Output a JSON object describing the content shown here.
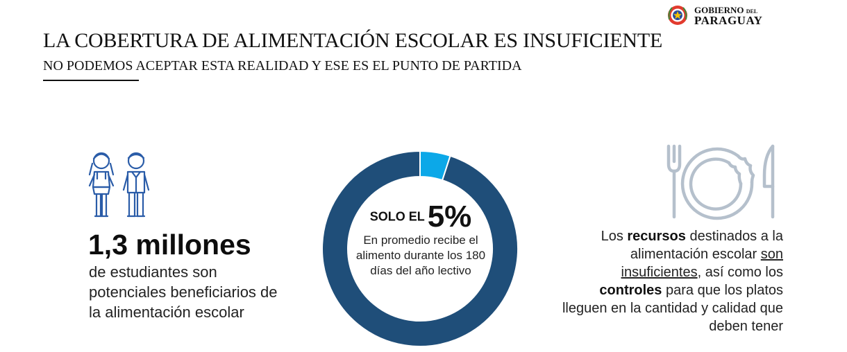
{
  "header": {
    "logo": {
      "line1": "GOBIERNO",
      "line1_small": "DEL",
      "line2": "PARAGUAY"
    },
    "title": "LA COBERTURA DE ALIMENTACIÓN ESCOLAR ES INSUFICIENTE",
    "subtitle": "NO PODEMOS ACEPTAR ESTA REALIDAD Y ESE ES EL PUNTO DE PARTIDA"
  },
  "left_block": {
    "icon": "students-icon",
    "headline": "1,3 millones",
    "description": "de estudiantes son potenciales beneficiarios de la alimentación escolar"
  },
  "chart_data": {
    "type": "pie",
    "variant": "donut",
    "slices": [
      {
        "label": "",
        "value": 5,
        "color": "#0ca8e8"
      },
      {
        "label": "",
        "value": 95,
        "color": "#1f4e79"
      }
    ],
    "center_lead": "SOLO EL",
    "center_value": "5%",
    "center_text": "En promedio recibe el alimento durante los 180 días del año lectivo"
  },
  "right_block": {
    "icon": "cutlery-plate-icon",
    "t1": "Los ",
    "b1": "recursos",
    "t2": " destinados a la alimentación escolar ",
    "u1": "son insuficientes",
    "t3": ", así como los ",
    "b2": "controles",
    "t4": " para que los platos lleguen en la cantidad y calidad que deben tener"
  },
  "colors": {
    "accent_blue": "#0ca8e8",
    "dark_blue": "#1f4e79",
    "icon_blue": "#2a5ca8",
    "icon_gray": "#b5c0cc"
  }
}
